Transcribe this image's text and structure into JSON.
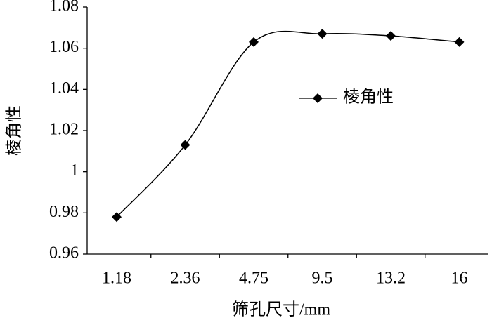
{
  "chart_data": {
    "type": "line",
    "x_label": "筛孔尺寸/mm",
    "y_label": "棱角性",
    "categories": [
      "1.18",
      "2.36",
      "4.75",
      "9.5",
      "13.2",
      "16"
    ],
    "series": [
      {
        "name": "棱角性",
        "color": "#000000",
        "values": [
          0.978,
          1.013,
          1.063,
          1.067,
          1.066,
          1.063
        ]
      }
    ],
    "ylim": [
      0.96,
      1.08
    ],
    "yticks": [
      0.96,
      0.98,
      1,
      1.02,
      1.04,
      1.06,
      1.08
    ],
    "smooth": true
  }
}
